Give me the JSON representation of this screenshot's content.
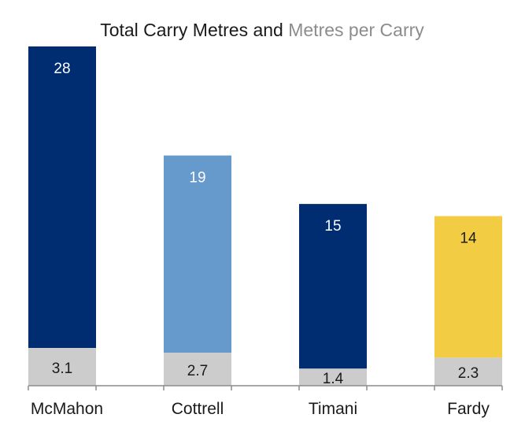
{
  "chart_data": {
    "type": "bar",
    "title_part1": "Total Carry Metres and ",
    "title_part2": "Metres per Carry",
    "categories": [
      "McMahon",
      "Cottrell",
      "Timani",
      "Fardy"
    ],
    "series": [
      {
        "values": [
          28,
          19,
          15,
          14
        ]
      },
      {
        "values": [
          3.1,
          2.7,
          1.4,
          2.3
        ]
      }
    ],
    "value_labels": {
      "total": [
        "28",
        "19",
        "15",
        "14"
      ],
      "per_carry": [
        "3.1",
        "2.7",
        "1.4",
        "2.3"
      ]
    },
    "colors": {
      "total": [
        "#002d72",
        "#6699cc",
        "#002d72",
        "#f2cd44"
      ],
      "per_carry": "#cccccc",
      "title_part2": "#8c8c8c",
      "axis": "#8c8c8c"
    },
    "stacked": true,
    "grid": false,
    "legend": "none"
  }
}
